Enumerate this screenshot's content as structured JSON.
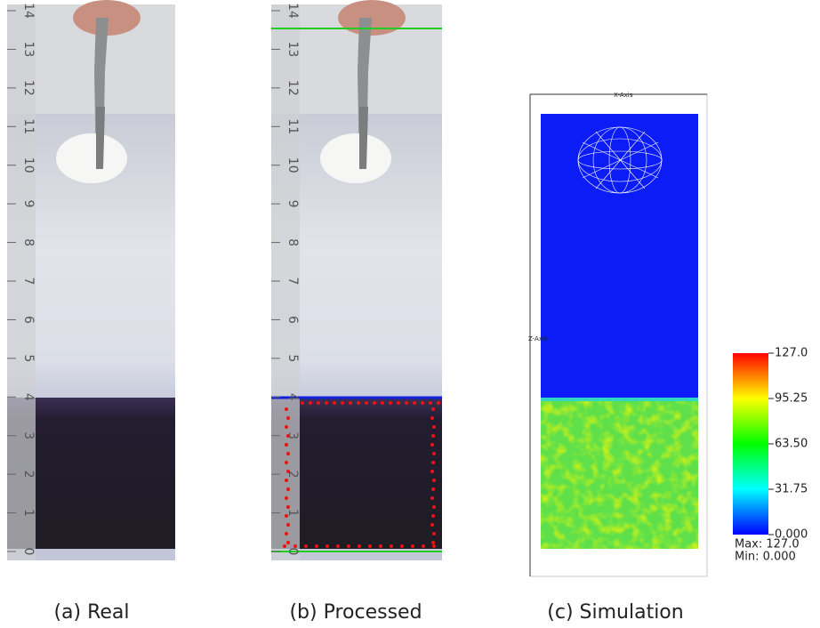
{
  "figure": {
    "panels": [
      {
        "caption": "(a) Real"
      },
      {
        "caption": "(b) Processed"
      },
      {
        "caption": "(c) Simulation"
      }
    ],
    "ruler_labels": [
      "0",
      "1",
      "2",
      "3",
      "4",
      "5",
      "6",
      "7",
      "8",
      "9",
      "10",
      "11",
      "12",
      "13",
      "14"
    ],
    "simulation": {
      "x_axis_label": "X-Axis",
      "z_axis_label": "Z-Axis",
      "colorbar_labels": [
        "127.0",
        "95.25",
        "63.50",
        "31.75",
        "0.000"
      ],
      "max_label": "Max: 127.0",
      "min_label": "Min: 0.000"
    }
  }
}
